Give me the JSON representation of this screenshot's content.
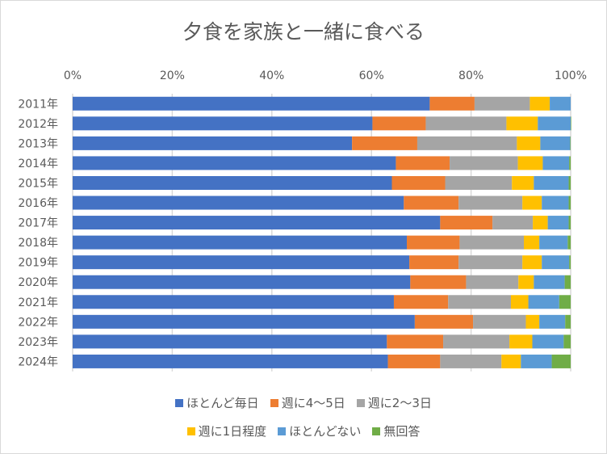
{
  "chart_data": {
    "type": "bar",
    "orientation": "horizontal",
    "stacked": "percent",
    "title": "夕食を家族と一緒に食べる",
    "xlim": [
      0,
      100
    ],
    "x_ticks": [
      "0%",
      "20%",
      "40%",
      "60%",
      "80%",
      "100%"
    ],
    "x_axis_position": "top",
    "grid": true,
    "legend_position": "bottom",
    "categories": [
      "2011年",
      "2012年",
      "2013年",
      "2014年",
      "2015年",
      "2016年",
      "2017年",
      "2018年",
      "2019年",
      "2020年",
      "2021年",
      "2022年",
      "2023年",
      "2024年"
    ],
    "series": [
      {
        "name": "ほとんど毎日",
        "color": "#4472c4",
        "values": [
          71.7,
          60.2,
          56.1,
          64.9,
          64.1,
          66.5,
          73.8,
          67.1,
          67.6,
          67.8,
          64.5,
          68.7,
          63.1,
          63.3
        ]
      },
      {
        "name": "週に4～5日",
        "color": "#ed7d31",
        "values": [
          9.0,
          10.7,
          13.1,
          10.8,
          10.7,
          11.0,
          10.5,
          10.6,
          9.9,
          11.2,
          10.9,
          11.7,
          11.3,
          10.5
        ]
      },
      {
        "name": "週に2～3日",
        "color": "#a5a5a5",
        "values": [
          11.1,
          16.2,
          20.0,
          13.7,
          13.4,
          12.8,
          8.1,
          12.9,
          12.8,
          10.5,
          12.6,
          10.6,
          13.3,
          12.3
        ]
      },
      {
        "name": "週に1日程度",
        "color": "#ffc000",
        "values": [
          4.0,
          6.3,
          4.7,
          5.0,
          4.4,
          3.9,
          3.0,
          3.1,
          3.9,
          3.1,
          3.5,
          2.7,
          4.6,
          3.9
        ]
      },
      {
        "name": "ほとんどない",
        "color": "#5b9bd5",
        "values": [
          4.2,
          6.6,
          6.0,
          5.3,
          7.0,
          5.4,
          4.2,
          5.7,
          5.5,
          6.2,
          6.2,
          5.2,
          6.3,
          6.2
        ]
      },
      {
        "name": "無回答",
        "color": "#70ad47",
        "values": [
          0,
          0.1,
          0.1,
          0.3,
          0.4,
          0.4,
          0.4,
          0.6,
          0.3,
          1.2,
          2.3,
          1.1,
          1.4,
          3.8
        ]
      }
    ]
  }
}
